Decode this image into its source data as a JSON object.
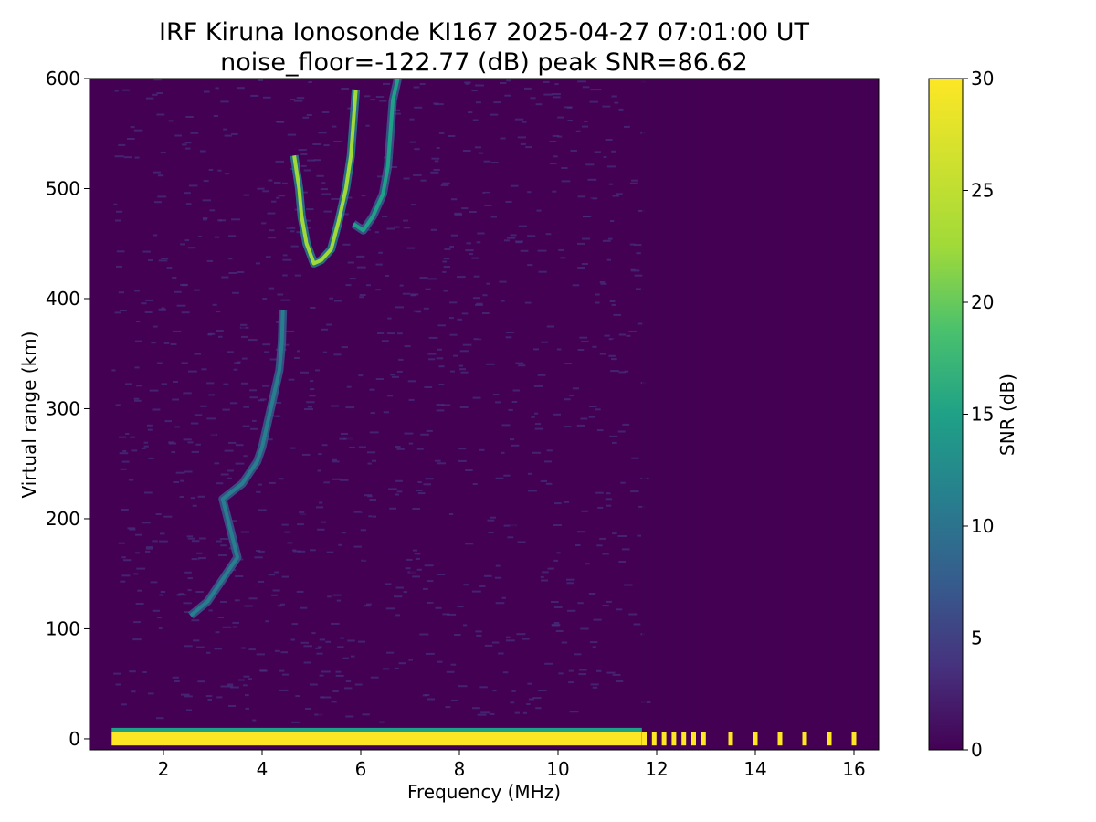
{
  "chart_data": {
    "type": "heatmap",
    "title": "IRF Kiruna Ionosonde KI167 2025-04-27 07:01:00  UT",
    "subtitle": "noise_floor=-122.77 (dB) peak SNR=86.62",
    "xlabel": "Frequency (MHz)",
    "ylabel": "Virtual range (km)",
    "colorbar_label": "SNR (dB)",
    "colormap": "viridis",
    "xlim": [
      0.5,
      16.5
    ],
    "ylim": [
      -10,
      600
    ],
    "clim": [
      0,
      30
    ],
    "x_ticks": [
      "2",
      "4",
      "6",
      "8",
      "10",
      "12",
      "14",
      "16"
    ],
    "y_ticks": [
      "0",
      "100",
      "200",
      "300",
      "400",
      "500",
      "600"
    ],
    "colorbar_ticks": [
      "0",
      "5",
      "10",
      "15",
      "20",
      "25",
      "30"
    ],
    "colors": {
      "low": "#440154",
      "mid": "#21918c",
      "high": "#fde725"
    },
    "features": {
      "ground_echo": {
        "range_km": 0,
        "x_start": 0.95,
        "x_end": 11.7,
        "snr": 30
      },
      "discrete_channels": [
        11.75,
        11.95,
        12.15,
        12.35,
        12.55,
        12.75,
        12.95,
        13.5,
        14.0,
        14.5,
        15.0,
        15.5,
        16.0
      ],
      "e_layer_trace": [
        {
          "x": 2.55,
          "y": 112
        },
        {
          "x": 2.9,
          "y": 125
        },
        {
          "x": 3.2,
          "y": 145
        },
        {
          "x": 3.5,
          "y": 165
        },
        {
          "x": 3.2,
          "y": 218
        },
        {
          "x": 3.6,
          "y": 232
        },
        {
          "x": 3.9,
          "y": 252
        },
        {
          "x": 4.0,
          "y": 265
        },
        {
          "x": 4.1,
          "y": 285
        },
        {
          "x": 4.2,
          "y": 305
        },
        {
          "x": 4.35,
          "y": 335
        },
        {
          "x": 4.4,
          "y": 360
        },
        {
          "x": 4.42,
          "y": 390
        }
      ],
      "f_layer_trace_o": [
        {
          "x": 4.65,
          "y": 530
        },
        {
          "x": 4.75,
          "y": 500
        },
        {
          "x": 4.8,
          "y": 475
        },
        {
          "x": 4.9,
          "y": 450
        },
        {
          "x": 5.05,
          "y": 432
        },
        {
          "x": 5.2,
          "y": 435
        },
        {
          "x": 5.4,
          "y": 445
        },
        {
          "x": 5.55,
          "y": 470
        },
        {
          "x": 5.7,
          "y": 500
        },
        {
          "x": 5.8,
          "y": 530
        },
        {
          "x": 5.85,
          "y": 560
        },
        {
          "x": 5.9,
          "y": 590
        }
      ],
      "f_layer_trace_x": [
        {
          "x": 5.85,
          "y": 468
        },
        {
          "x": 6.05,
          "y": 462
        },
        {
          "x": 6.25,
          "y": 475
        },
        {
          "x": 6.45,
          "y": 495
        },
        {
          "x": 6.55,
          "y": 520
        },
        {
          "x": 6.6,
          "y": 550
        },
        {
          "x": 6.65,
          "y": 580
        },
        {
          "x": 6.75,
          "y": 600
        }
      ]
    }
  }
}
